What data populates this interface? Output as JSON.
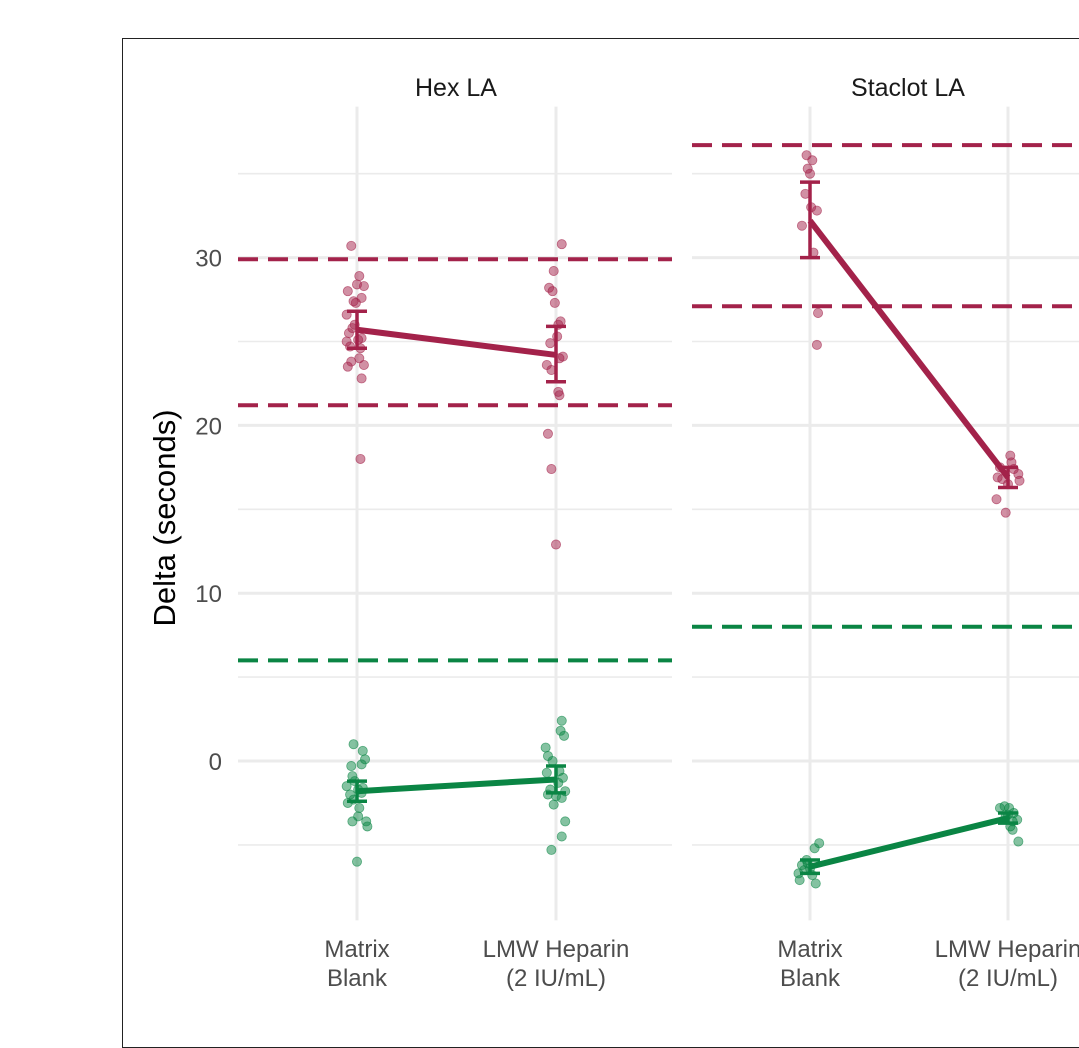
{
  "chart_data": {
    "type": "scatter",
    "ylabel": "Delta (seconds)",
    "xlabel": "",
    "ylim": [
      -9.5,
      39
    ],
    "yticks": [
      0,
      10,
      20,
      30
    ],
    "categories": [
      "Matrix\nBlank",
      "LMW Heparin\n(2 IU/mL)"
    ],
    "category_lines": [
      [
        "Matrix",
        "Blank"
      ],
      [
        "LMW Heparin",
        "(2 IU/mL)"
      ]
    ],
    "grid": true,
    "colors": {
      "red": "#a3224a",
      "green": "#0a8544"
    },
    "panels": [
      {
        "title": "Hex LA",
        "thresholds": [
          {
            "color": "red",
            "y": 29.9
          },
          {
            "color": "red",
            "y": 21.2
          },
          {
            "color": "green",
            "y": 6.0
          }
        ],
        "series": [
          {
            "color": "red",
            "means": [
              25.7,
              24.2
            ],
            "errors": [
              [
                24.6,
                26.8
              ],
              [
                22.6,
                25.9
              ]
            ],
            "points": [
              [
                [
                  -0.05,
                  30.7
                ],
                [
                  -0.08,
                  28.0
                ],
                [
                  -0.03,
                  27.4
                ],
                [
                  0.02,
                  28.9
                ],
                [
                  0.04,
                  27.6
                ],
                [
                  0.06,
                  28.3
                ],
                [
                  -0.09,
                  26.6
                ],
                [
                  -0.07,
                  25.5
                ],
                [
                  -0.04,
                  25.8
                ],
                [
                  -0.02,
                  26.0
                ],
                [
                  0.01,
                  25.1
                ],
                [
                  0.04,
                  25.2
                ],
                [
                  -0.09,
                  25.0
                ],
                [
                  0.03,
                  24.6
                ],
                [
                  -0.06,
                  24.7
                ],
                [
                  0.02,
                  24.0
                ],
                [
                  -0.05,
                  23.8
                ],
                [
                  0.06,
                  23.6
                ],
                [
                  0.04,
                  22.8
                ],
                [
                  -0.08,
                  23.5
                ],
                [
                  0.03,
                  18.0
                ],
                [
                  -0.01,
                  27.3
                ],
                [
                  0.0,
                  28.4
                ]
              ],
              [
                [
                  0.05,
                  30.8
                ],
                [
                  -0.02,
                  29.2
                ],
                [
                  -0.06,
                  28.2
                ],
                [
                  -0.03,
                  28.0
                ],
                [
                  -0.01,
                  27.3
                ],
                [
                  0.04,
                  26.2
                ],
                [
                  0.01,
                  25.3
                ],
                [
                  0.06,
                  24.1
                ],
                [
                  0.03,
                  24.0
                ],
                [
                  -0.08,
                  23.6
                ],
                [
                  -0.04,
                  23.3
                ],
                [
                  0.02,
                  22.0
                ],
                [
                  0.03,
                  21.8
                ],
                [
                  -0.07,
                  19.5
                ],
                [
                  -0.04,
                  17.4
                ],
                [
                  0.0,
                  12.9
                ],
                [
                  -0.05,
                  24.9
                ],
                [
                  0.02,
                  26.0
                ]
              ]
            ]
          },
          {
            "color": "green",
            "means": [
              -1.8,
              -1.1
            ],
            "errors": [
              [
                -2.4,
                -1.2
              ],
              [
                -1.9,
                -0.3
              ]
            ],
            "points": [
              [
                [
                  -0.03,
                  1.0
                ],
                [
                  0.05,
                  0.6
                ],
                [
                  0.07,
                  0.1
                ],
                [
                  -0.05,
                  -0.3
                ],
                [
                  0.04,
                  -0.2
                ],
                [
                  -0.04,
                  -0.9
                ],
                [
                  -0.09,
                  -1.5
                ],
                [
                  0.01,
                  -1.7
                ],
                [
                  -0.06,
                  -2.0
                ],
                [
                  0.04,
                  -1.9
                ],
                [
                  -0.03,
                  -2.3
                ],
                [
                  -0.08,
                  -2.5
                ],
                [
                  0.02,
                  -2.8
                ],
                [
                  -0.04,
                  -3.6
                ],
                [
                  0.01,
                  -3.3
                ],
                [
                  0.08,
                  -3.6
                ],
                [
                  0.09,
                  -3.9
                ],
                [
                  0.0,
                  -6.0
                ],
                [
                  -0.02,
                  -1.2
                ],
                [
                  0.05,
                  -1.6
                ]
              ],
              [
                [
                  0.05,
                  2.4
                ],
                [
                  0.04,
                  1.8
                ],
                [
                  0.07,
                  1.5
                ],
                [
                  -0.09,
                  0.8
                ],
                [
                  -0.07,
                  0.3
                ],
                [
                  -0.03,
                  0.0
                ],
                [
                  0.03,
                  -0.6
                ],
                [
                  -0.08,
                  -0.7
                ],
                [
                  0.06,
                  -1.0
                ],
                [
                  0.02,
                  -1.3
                ],
                [
                  -0.05,
                  -1.7
                ],
                [
                  -0.07,
                  -2.0
                ],
                [
                  0.0,
                  -2.1
                ],
                [
                  0.05,
                  -2.2
                ],
                [
                  0.08,
                  -1.8
                ],
                [
                  0.08,
                  -3.6
                ],
                [
                  0.05,
                  -4.5
                ],
                [
                  -0.04,
                  -5.3
                ],
                [
                  -0.02,
                  -2.6
                ]
              ]
            ]
          }
        ]
      },
      {
        "title": "Staclot LA",
        "thresholds": [
          {
            "color": "red",
            "y": 36.7
          },
          {
            "color": "red",
            "y": 27.1
          },
          {
            "color": "green",
            "y": 8.0
          }
        ],
        "series": [
          {
            "color": "red",
            "means": [
              32.2,
              16.9
            ],
            "errors": [
              [
                30.0,
                34.5
              ],
              [
                16.3,
                17.5
              ]
            ],
            "points": [
              [
                [
                  -0.03,
                  36.1
                ],
                [
                  0.02,
                  35.8
                ],
                [
                  -0.02,
                  35.3
                ],
                [
                  0.0,
                  35.0
                ],
                [
                  -0.04,
                  33.8
                ],
                [
                  0.06,
                  32.8
                ],
                [
                  -0.07,
                  31.9
                ],
                [
                  0.03,
                  30.3
                ],
                [
                  0.07,
                  26.7
                ],
                [
                  0.06,
                  24.8
                ],
                [
                  0.01,
                  33.0
                ]
              ],
              [
                [
                  0.02,
                  18.2
                ],
                [
                  0.03,
                  17.8
                ],
                [
                  0.05,
                  17.4
                ],
                [
                  -0.07,
                  17.5
                ],
                [
                  0.09,
                  17.1
                ],
                [
                  -0.09,
                  16.9
                ],
                [
                  -0.05,
                  16.8
                ],
                [
                  0.1,
                  16.7
                ],
                [
                  -0.1,
                  15.6
                ],
                [
                  -0.02,
                  14.8
                ],
                [
                  0.0,
                  16.5
                ]
              ]
            ]
          },
          {
            "color": "green",
            "means": [
              -6.3,
              -3.4
            ],
            "errors": [
              [
                -6.7,
                -5.9
              ],
              [
                -3.7,
                -3.1
              ]
            ],
            "points": [
              [
                [
                  0.08,
                  -4.9
                ],
                [
                  0.04,
                  -5.2
                ],
                [
                  -0.03,
                  -5.9
                ],
                [
                  -0.07,
                  -6.2
                ],
                [
                  0.0,
                  -6.4
                ],
                [
                  -0.05,
                  -6.5
                ],
                [
                  -0.1,
                  -6.7
                ],
                [
                  0.02,
                  -6.8
                ],
                [
                  -0.09,
                  -7.1
                ],
                [
                  0.05,
                  -7.3
                ],
                [
                  -0.02,
                  -6.1
                ]
              ],
              [
                [
                  -0.07,
                  -2.8
                ],
                [
                  -0.03,
                  -2.7
                ],
                [
                  0.01,
                  -2.8
                ],
                [
                  0.05,
                  -3.1
                ],
                [
                  0.08,
                  -3.5
                ],
                [
                  -0.02,
                  -3.3
                ],
                [
                  0.04,
                  -3.6
                ],
                [
                  0.02,
                  -3.9
                ],
                [
                  0.04,
                  -4.1
                ],
                [
                  0.09,
                  -4.8
                ],
                [
                  0.0,
                  -3.2
                ]
              ]
            ]
          }
        ]
      }
    ]
  }
}
